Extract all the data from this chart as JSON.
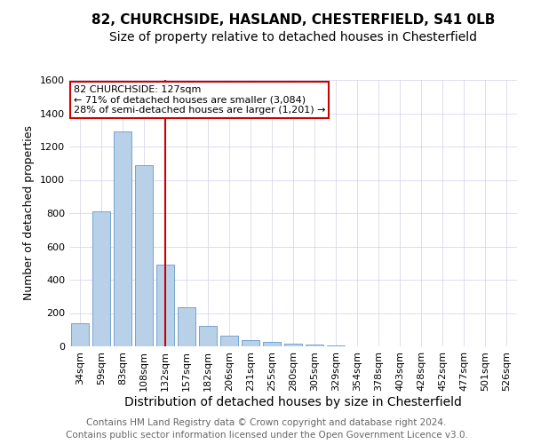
{
  "title1": "82, CHURCHSIDE, HASLAND, CHESTERFIELD, S41 0LB",
  "title2": "Size of property relative to detached houses in Chesterfield",
  "xlabel": "Distribution of detached houses by size in Chesterfield",
  "ylabel": "Number of detached properties",
  "footer1": "Contains HM Land Registry data © Crown copyright and database right 2024.",
  "footer2": "Contains public sector information licensed under the Open Government Licence v3.0.",
  "categories": [
    "34sqm",
    "59sqm",
    "83sqm",
    "108sqm",
    "132sqm",
    "157sqm",
    "182sqm",
    "206sqm",
    "231sqm",
    "255sqm",
    "280sqm",
    "305sqm",
    "329sqm",
    "354sqm",
    "378sqm",
    "403sqm",
    "428sqm",
    "452sqm",
    "477sqm",
    "501sqm",
    "526sqm"
  ],
  "values": [
    140,
    810,
    1290,
    1090,
    490,
    235,
    125,
    65,
    38,
    25,
    18,
    10,
    5,
    2,
    1,
    1,
    0,
    0,
    0,
    0,
    0
  ],
  "bar_color": "#b8d0e8",
  "bar_edge_color": "#6699cc",
  "grid_color": "#d0d0e8",
  "vline_x_index": 4,
  "vline_color": "#cc0000",
  "annotation_text": "82 CHURCHSIDE: 127sqm\n← 71% of detached houses are smaller (3,084)\n28% of semi-detached houses are larger (1,201) →",
  "annotation_box_facecolor": "white",
  "annotation_box_edgecolor": "#cc0000",
  "ylim": [
    0,
    1600
  ],
  "yticks": [
    0,
    200,
    400,
    600,
    800,
    1000,
    1200,
    1400,
    1600
  ],
  "title1_fontsize": 11,
  "title2_fontsize": 10,
  "xlabel_fontsize": 10,
  "ylabel_fontsize": 9,
  "tick_fontsize": 8,
  "annot_fontsize": 8,
  "footer_fontsize": 7.5,
  "footer_color": "#666666"
}
